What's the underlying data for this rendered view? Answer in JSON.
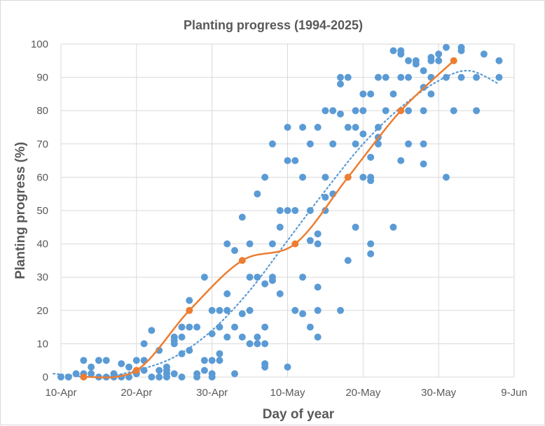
{
  "chart_data": {
    "type": "scatter",
    "title": "Planting progress (1994-2025)",
    "xlabel": "Day of year",
    "ylabel": "Planting progress (%)",
    "xlim": [
      "10-Apr",
      "9-Jun"
    ],
    "ylim": [
      0,
      100
    ],
    "x_ticks": [
      "10-Apr",
      "20-Apr",
      "30-Apr",
      "10-May",
      "20-May",
      "30-May",
      "9-Jun"
    ],
    "y_ticks": [
      0,
      10,
      20,
      30,
      40,
      50,
      60,
      70,
      80,
      90,
      100
    ],
    "grid": true,
    "legend": "none",
    "colors": {
      "scatter": "#5b9bd5",
      "line": "#ed7d31",
      "trend": "#5b9bd5",
      "grid": "#d9d9d9",
      "text": "#595959"
    },
    "scatter_points": [
      [
        "10-Apr",
        0
      ],
      [
        "11-Apr",
        0
      ],
      [
        "12-Apr",
        1
      ],
      [
        "13-Apr",
        5
      ],
      [
        "13-Apr",
        1
      ],
      [
        "14-Apr",
        3
      ],
      [
        "14-Apr",
        1
      ],
      [
        "15-Apr",
        5
      ],
      [
        "15-Apr",
        0
      ],
      [
        "16-Apr",
        5
      ],
      [
        "16-Apr",
        0
      ],
      [
        "17-Apr",
        1
      ],
      [
        "17-Apr",
        0
      ],
      [
        "18-Apr",
        4
      ],
      [
        "18-Apr",
        0
      ],
      [
        "19-Apr",
        3
      ],
      [
        "19-Apr",
        0
      ],
      [
        "20-Apr",
        5
      ],
      [
        "20-Apr",
        1
      ],
      [
        "21-Apr",
        10
      ],
      [
        "21-Apr",
        5
      ],
      [
        "21-Apr",
        2
      ],
      [
        "22-Apr",
        14
      ],
      [
        "22-Apr",
        0
      ],
      [
        "23-Apr",
        8
      ],
      [
        "23-Apr",
        2
      ],
      [
        "23-Apr",
        0
      ],
      [
        "24-Apr",
        3
      ],
      [
        "24-Apr",
        2
      ],
      [
        "24-Apr",
        1
      ],
      [
        "24-Apr",
        0
      ],
      [
        "25-Apr",
        12
      ],
      [
        "25-Apr",
        11
      ],
      [
        "25-Apr",
        10
      ],
      [
        "25-Apr",
        1
      ],
      [
        "26-Apr",
        15
      ],
      [
        "26-Apr",
        12
      ],
      [
        "26-Apr",
        7
      ],
      [
        "26-Apr",
        0
      ],
      [
        "27-Apr",
        23
      ],
      [
        "27-Apr",
        15
      ],
      [
        "27-Apr",
        8
      ],
      [
        "28-Apr",
        15
      ],
      [
        "28-Apr",
        1
      ],
      [
        "28-Apr",
        0
      ],
      [
        "29-Apr",
        30
      ],
      [
        "29-Apr",
        5
      ],
      [
        "29-Apr",
        2
      ],
      [
        "30-Apr",
        20
      ],
      [
        "30-Apr",
        13
      ],
      [
        "30-Apr",
        5
      ],
      [
        "30-Apr",
        1
      ],
      [
        "30-Apr",
        0
      ],
      [
        "1-May",
        20
      ],
      [
        "1-May",
        15
      ],
      [
        "1-May",
        7
      ],
      [
        "1-May",
        5
      ],
      [
        "2-May",
        40
      ],
      [
        "2-May",
        25
      ],
      [
        "2-May",
        20
      ],
      [
        "2-May",
        12
      ],
      [
        "3-May",
        38
      ],
      [
        "3-May",
        15
      ],
      [
        "3-May",
        1
      ],
      [
        "4-May",
        48
      ],
      [
        "4-May",
        19
      ],
      [
        "4-May",
        12
      ],
      [
        "5-May",
        40
      ],
      [
        "5-May",
        30
      ],
      [
        "5-May",
        20
      ],
      [
        "5-May",
        10
      ],
      [
        "6-May",
        55
      ],
      [
        "6-May",
        30
      ],
      [
        "6-May",
        12
      ],
      [
        "6-May",
        10
      ],
      [
        "7-May",
        60
      ],
      [
        "7-May",
        28
      ],
      [
        "7-May",
        15
      ],
      [
        "7-May",
        10
      ],
      [
        "7-May",
        4
      ],
      [
        "7-May",
        3
      ],
      [
        "8-May",
        70
      ],
      [
        "8-May",
        40
      ],
      [
        "8-May",
        30
      ],
      [
        "8-May",
        29
      ],
      [
        "9-May",
        50
      ],
      [
        "9-May",
        45
      ],
      [
        "9-May",
        25
      ],
      [
        "10-May",
        75
      ],
      [
        "10-May",
        65
      ],
      [
        "10-May",
        50
      ],
      [
        "10-May",
        3
      ],
      [
        "11-May",
        65
      ],
      [
        "11-May",
        50
      ],
      [
        "11-May",
        20
      ],
      [
        "12-May",
        75
      ],
      [
        "12-May",
        60
      ],
      [
        "12-May",
        30
      ],
      [
        "12-May",
        19
      ],
      [
        "13-May",
        70
      ],
      [
        "13-May",
        50
      ],
      [
        "13-May",
        41
      ],
      [
        "13-May",
        15
      ],
      [
        "14-May",
        75
      ],
      [
        "14-May",
        43
      ],
      [
        "14-May",
        40
      ],
      [
        "14-May",
        27
      ],
      [
        "14-May",
        20
      ],
      [
        "14-May",
        12
      ],
      [
        "15-May",
        80
      ],
      [
        "15-May",
        60
      ],
      [
        "15-May",
        54
      ],
      [
        "15-May",
        50
      ],
      [
        "16-May",
        80
      ],
      [
        "16-May",
        70
      ],
      [
        "16-May",
        55
      ],
      [
        "17-May",
        90
      ],
      [
        "17-May",
        88
      ],
      [
        "17-May",
        79
      ],
      [
        "17-May",
        20
      ],
      [
        "18-May",
        90
      ],
      [
        "18-May",
        75
      ],
      [
        "18-May",
        35
      ],
      [
        "19-May",
        80
      ],
      [
        "19-May",
        75
      ],
      [
        "19-May",
        70
      ],
      [
        "19-May",
        45
      ],
      [
        "20-May",
        85
      ],
      [
        "20-May",
        80
      ],
      [
        "20-May",
        73
      ],
      [
        "20-May",
        60
      ],
      [
        "21-May",
        85
      ],
      [
        "21-May",
        66
      ],
      [
        "21-May",
        60
      ],
      [
        "21-May",
        59
      ],
      [
        "21-May",
        40
      ],
      [
        "21-May",
        37
      ],
      [
        "22-May",
        90
      ],
      [
        "22-May",
        75
      ],
      [
        "22-May",
        72
      ],
      [
        "22-May",
        70
      ],
      [
        "23-May",
        90
      ],
      [
        "23-May",
        80
      ],
      [
        "24-May",
        98
      ],
      [
        "24-May",
        85
      ],
      [
        "24-May",
        45
      ],
      [
        "25-May",
        98
      ],
      [
        "25-May",
        97
      ],
      [
        "25-May",
        90
      ],
      [
        "25-May",
        65
      ],
      [
        "26-May",
        95
      ],
      [
        "26-May",
        90
      ],
      [
        "26-May",
        80
      ],
      [
        "26-May",
        70
      ],
      [
        "27-May",
        95
      ],
      [
        "27-May",
        94
      ],
      [
        "28-May",
        92
      ],
      [
        "28-May",
        87
      ],
      [
        "28-May",
        80
      ],
      [
        "28-May",
        70
      ],
      [
        "28-May",
        64
      ],
      [
        "29-May",
        96
      ],
      [
        "29-May",
        95
      ],
      [
        "29-May",
        90
      ],
      [
        "29-May",
        85
      ],
      [
        "30-May",
        97
      ],
      [
        "30-May",
        95
      ],
      [
        "31-May",
        99
      ],
      [
        "31-May",
        90
      ],
      [
        "31-May",
        60
      ],
      [
        "1-Jun",
        80
      ],
      [
        "2-Jun",
        99
      ],
      [
        "2-Jun",
        98
      ],
      [
        "2-Jun",
        90
      ],
      [
        "4-Jun",
        90
      ],
      [
        "4-Jun",
        80
      ],
      [
        "5-Jun",
        97
      ],
      [
        "7-Jun",
        95
      ],
      [
        "7-Jun",
        90
      ]
    ],
    "line_points": [
      [
        "13-Apr",
        0
      ],
      [
        "20-Apr",
        2
      ],
      [
        "27-Apr",
        20
      ],
      [
        "4-May",
        35
      ],
      [
        "11-May",
        40
      ],
      [
        "18-May",
        60
      ],
      [
        "25-May",
        80
      ],
      [
        "1-Jun",
        95
      ]
    ],
    "trendline_points": [
      [
        "9-Apr",
        1
      ],
      [
        "15-Apr",
        0
      ],
      [
        "20-Apr",
        2
      ],
      [
        "25-Apr",
        6
      ],
      [
        "30-Apr",
        14
      ],
      [
        "5-May",
        26
      ],
      [
        "10-May",
        41
      ],
      [
        "15-May",
        56
      ],
      [
        "20-May",
        70
      ],
      [
        "25-May",
        81
      ],
      [
        "30-May",
        89
      ],
      [
        "3-Jun",
        92
      ],
      [
        "7-Jun",
        88
      ]
    ]
  }
}
